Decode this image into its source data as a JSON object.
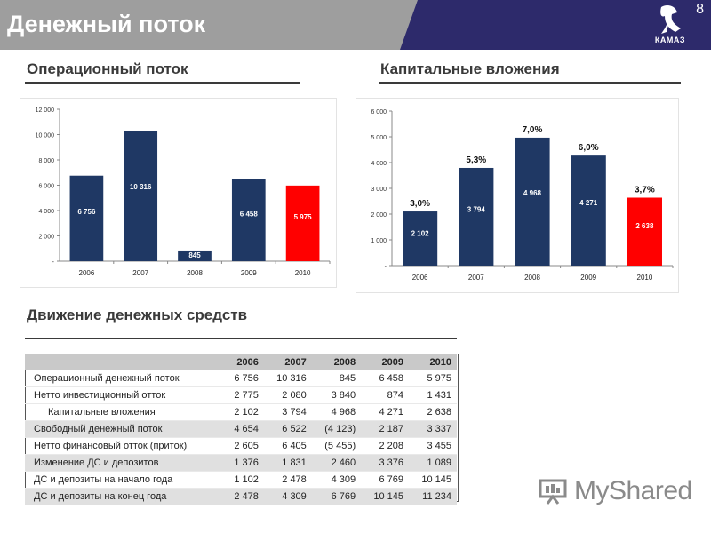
{
  "header": {
    "title": "Денежный поток",
    "page_number": "8",
    "logo_text": "КАМАЗ"
  },
  "sections": {
    "operating": "Операционный поток",
    "capex": "Капитальные вложения",
    "cashflow": "Движение денежных средств"
  },
  "chart_data": [
    {
      "type": "bar",
      "categories": [
        "2006",
        "2007",
        "2008",
        "2009",
        "2010"
      ],
      "values": [
        6756,
        10316,
        845,
        6458,
        5975
      ],
      "value_labels": [
        "6 756",
        "10 316",
        "845",
        "6 458",
        "5 975"
      ],
      "yticks": [
        "-",
        "2 000",
        "4 000",
        "6 000",
        "8 000",
        "10 000",
        "12 000"
      ],
      "ylim": [
        0,
        12000
      ],
      "colors": [
        "#1f3864",
        "#1f3864",
        "#1f3864",
        "#1f3864",
        "#ff0000"
      ]
    },
    {
      "type": "bar",
      "categories": [
        "2006",
        "2007",
        "2008",
        "2009",
        "2010"
      ],
      "values": [
        2102,
        3794,
        4968,
        4271,
        2638
      ],
      "value_labels": [
        "2 102",
        "3 794",
        "4 968",
        "4 271",
        "2 638"
      ],
      "annotations": [
        "3,0%",
        "5,3%",
        "7,0%",
        "6,0%",
        "3,7%"
      ],
      "yticks": [
        "-",
        "1 000",
        "2 000",
        "3 000",
        "4 000",
        "5 000",
        "6 000"
      ],
      "ylim": [
        0,
        6000
      ],
      "colors": [
        "#1f3864",
        "#1f3864",
        "#1f3864",
        "#1f3864",
        "#ff0000"
      ]
    }
  ],
  "table": {
    "columns": [
      "",
      "2006",
      "2007",
      "2008",
      "2009",
      "2010"
    ],
    "rows": [
      [
        "Операционный денежный поток",
        "6 756",
        "10 316",
        "845",
        "6 458",
        "5 975"
      ],
      [
        "Нетто инвестиционный отток",
        "2 775",
        "2 080",
        "3 840",
        "874",
        "1 431"
      ],
      [
        "Капитальные вложения",
        "2 102",
        "3 794",
        "4 968",
        "4 271",
        "2 638"
      ],
      [
        "Свободный денежный поток",
        "4 654",
        "6 522",
        "(4 123)",
        "2 187",
        "3 337"
      ],
      [
        "Нетто финансовый отток (приток)",
        "2 605",
        "6 405",
        "(5 455)",
        "2 208",
        "3 455"
      ],
      [
        "Изменение ДС и депозитов",
        "1 376",
        "1 831",
        "2 460",
        "3 376",
        "1 089"
      ],
      [
        "ДС и депозиты на начало года",
        "1 102",
        "2 478",
        "4 309",
        "6 769",
        "10 145"
      ],
      [
        "ДС и депозиты на конец года",
        "2 478",
        "4 309",
        "6 769",
        "10 145",
        "11 234"
      ]
    ]
  },
  "watermark": "MyShared"
}
